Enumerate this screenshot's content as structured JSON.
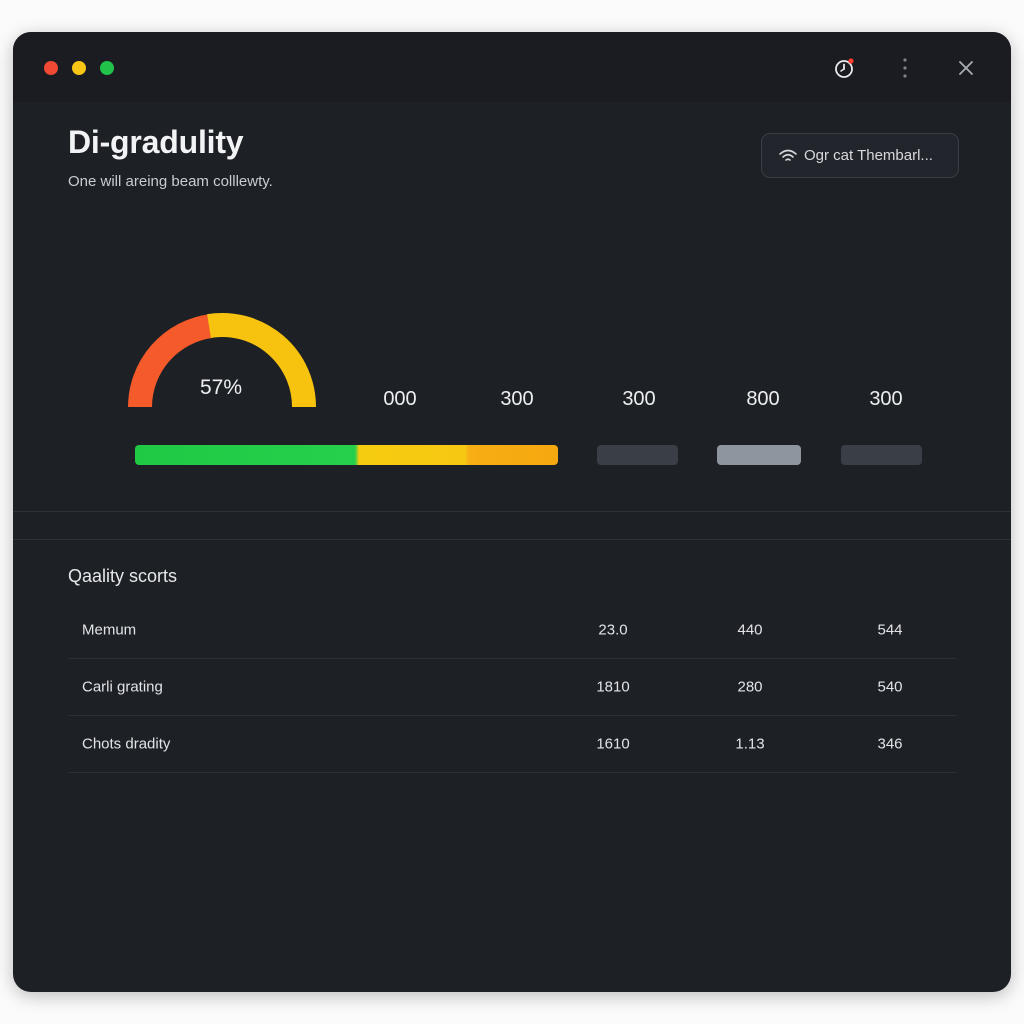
{
  "window": {
    "traffic_lights": [
      "#f04a34",
      "#f6c515",
      "#22c24a"
    ],
    "titlebar_icons": [
      "timer-icon",
      "more-vertical-icon",
      "close-icon"
    ]
  },
  "header": {
    "title": "Di-gradulity",
    "subtitle": "One will areing beam colllewty.",
    "pill": {
      "icon": "wifi-icon",
      "label": "Ogr cat Thembarl..."
    }
  },
  "gauge": {
    "label": "57%",
    "value_percent": 57,
    "colors": [
      "#f45a2a",
      "#f7c30f"
    ]
  },
  "stats": [
    "000",
    "300",
    "300",
    "800",
    "300"
  ],
  "progress": {
    "segments": [
      {
        "color": "#22cb47",
        "fraction": 0.53
      },
      {
        "color": "#f7c812",
        "fraction": 0.26
      },
      {
        "color": "#f5a80f",
        "fraction": 0.21
      }
    ],
    "mini_bars": [
      {
        "color": "#3a3e47"
      },
      {
        "color": "#8f959f"
      },
      {
        "color": "#3a3e47"
      }
    ]
  },
  "quality": {
    "title": "Qaality scorts",
    "rows": [
      {
        "name": "Memum",
        "values": [
          "23.0",
          "440",
          "544"
        ]
      },
      {
        "name": "Carli grating",
        "values": [
          "1810",
          "280",
          "540"
        ]
      },
      {
        "name": "Chots dradity",
        "values": [
          "1610",
          "1.13",
          "346"
        ]
      }
    ]
  }
}
